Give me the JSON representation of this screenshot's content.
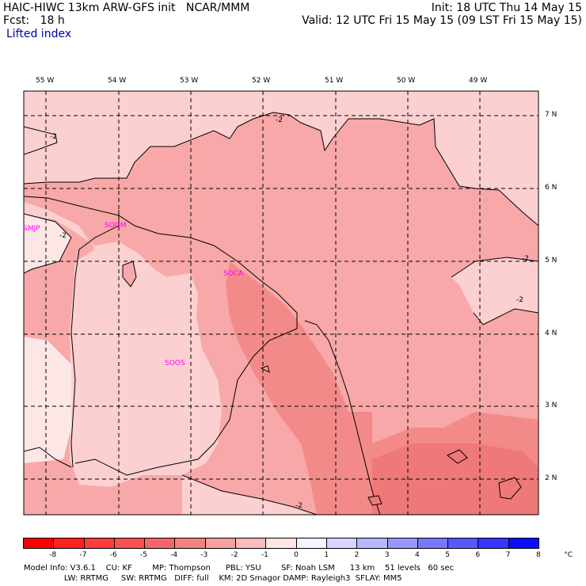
{
  "header": {
    "line1_left": "HAIC-HIWC 13km ARW-GFS init   NCAR/MMM",
    "line1_right": "Init: 18 UTC Thu 14 May 15",
    "line2_left": "Fcst:   18 h",
    "line2_right": "Valid: 12 UTC Fri 15 May 15 (09 LST Fri 15 May 15)",
    "field": "Lifted index"
  },
  "map": {
    "lon_labels": [
      "55 W",
      "54 W",
      "53 W",
      "52 W",
      "51 W",
      "50 W",
      "49 W"
    ],
    "lat_labels": [
      "7 N",
      "6 N",
      "5 N",
      "4 N",
      "3 N",
      "2 N"
    ],
    "stations": [
      {
        "id": "SMJP"
      },
      {
        "id": "SOGM"
      },
      {
        "id": "SOCA"
      },
      {
        "id": "SOOS"
      }
    ],
    "contour_labels": [
      "-2",
      "-2",
      "-2",
      "-2",
      "-2",
      "-2"
    ],
    "colors": {
      "light": "#fcd0d0",
      "medium": "#f8a8a8",
      "dark": "#f28a8a",
      "darker": "#ef7878",
      "near_zero": "#fde6e6",
      "station": "#ff00ff"
    }
  },
  "colorbar": {
    "labels": [
      "-8",
      "-7",
      "-6",
      "-5",
      "-4",
      "-3",
      "-2",
      "-1",
      "0",
      "1",
      "2",
      "3",
      "4",
      "5",
      "6",
      "7",
      "8",
      "°C"
    ],
    "colors": [
      "#ff0000",
      "#ff2020",
      "#ff3c3c",
      "#fa5050",
      "#f76666",
      "#f48080",
      "#f7a0a0",
      "#fbbcbc",
      "#fde6e6",
      "#f4f4ff",
      "#d6d6ff",
      "#b8b8ff",
      "#9898ff",
      "#7878ff",
      "#5858ff",
      "#3636ff",
      "#0c0cff"
    ]
  },
  "footer": {
    "line1": "Model Info: V3.6.1    CU: KF        MP: Thompson      PBL: YSU        SF: Noah LSM      13 km    51 levels   60 sec",
    "line2": "                LW: RRTMG     SW: RRTMG   DIFF: full    KM: 2D Smagor DAMP: Rayleigh3  SFLAY: MM5"
  }
}
